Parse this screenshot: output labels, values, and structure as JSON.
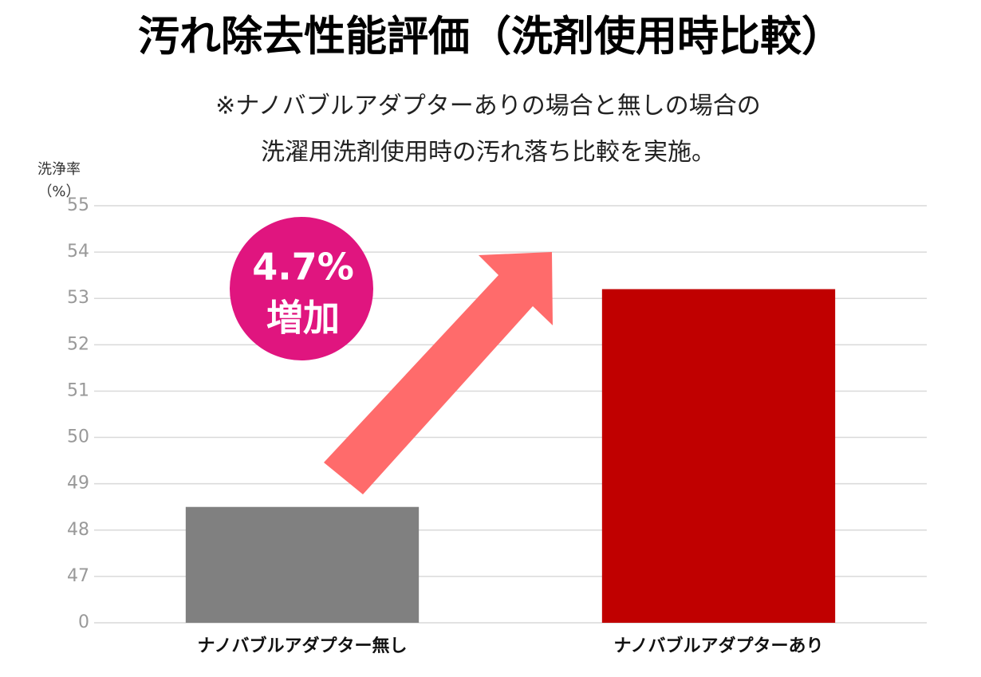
{
  "chart_data": {
    "type": "bar",
    "title": "汚れ除去性能評価（洗剤使用時比較）",
    "subtitle": [
      "※ナノバブルアダプターありの場合と無しの場合の",
      "洗濯用洗剤使用時の汚れ落ち比較を実施。"
    ],
    "y_label": [
      "洗浄率",
      "（%）"
    ],
    "annotation": [
      "4.7%",
      "増加"
    ],
    "categories": [
      "ナノバブルアダプター無し",
      "ナノバブルアダプターあり"
    ],
    "values": [
      48.5,
      53.2
    ],
    "colors": [
      "#808080",
      "#c00000"
    ],
    "ylim": [
      0,
      55
    ],
    "yticks": [
      0,
      47,
      48,
      49,
      50,
      51,
      52,
      53,
      54,
      55
    ],
    "axis_break": true,
    "grid": true
  }
}
